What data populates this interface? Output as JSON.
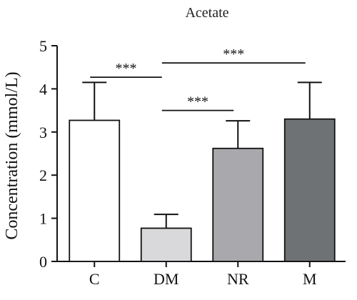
{
  "chart_data": {
    "type": "bar",
    "title": "Acetate",
    "ylabel": "Concentration (mmol/L)",
    "xlabel": "",
    "ylim": [
      0,
      5
    ],
    "yticks": [
      0,
      1,
      2,
      3,
      4,
      5
    ],
    "categories": [
      "C",
      "DM",
      "NR",
      "M"
    ],
    "values": [
      3.27,
      0.77,
      2.62,
      3.3
    ],
    "errors": [
      0.88,
      0.32,
      0.64,
      0.85
    ],
    "bar_colors": [
      "#ffffff",
      "#d9d9db",
      "#a9a9ad",
      "#6f7274"
    ],
    "grid": false,
    "significance": [
      {
        "from": "C",
        "to": "DM",
        "label": "***",
        "y": 4.27
      },
      {
        "from": "DM",
        "to": "M",
        "label": "***",
        "y": 4.6
      },
      {
        "from": "DM",
        "to": "NR",
        "label": "***",
        "y": 3.5
      }
    ]
  }
}
